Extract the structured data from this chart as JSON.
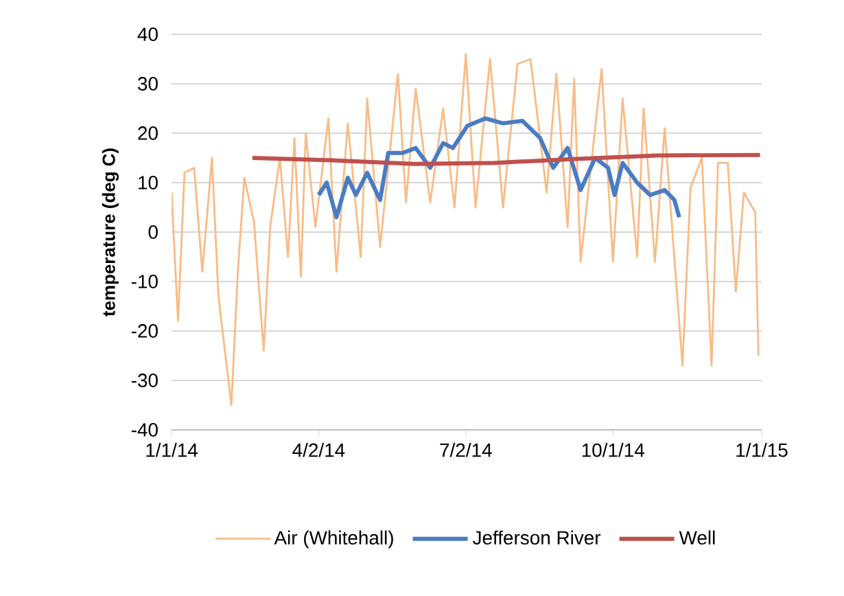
{
  "chart_data": {
    "type": "line",
    "ylabel": "temperature (deg C)",
    "xlim": [
      "2014-01-01",
      "2015-01-01"
    ],
    "xticks": [
      {
        "value": "2014-01-01",
        "label": "1/1/14"
      },
      {
        "value": "2014-04-02",
        "label": "4/2/14"
      },
      {
        "value": "2014-07-02",
        "label": "7/2/14"
      },
      {
        "value": "2014-10-01",
        "label": "10/1/14"
      },
      {
        "value": "2015-01-01",
        "label": "1/1/15"
      }
    ],
    "ylim": [
      -40,
      40
    ],
    "yticks": [
      -40,
      -30,
      -20,
      -10,
      0,
      10,
      20,
      30,
      40
    ],
    "grid": "y",
    "legend": "bottom",
    "marker": "none",
    "line_style": "solid",
    "series": [
      {
        "name": "Air (Whitehall)",
        "color": "#f9bb85",
        "x": [
          "2014-01-01",
          "2014-01-05",
          "2014-01-09",
          "2014-01-15",
          "2014-01-20",
          "2014-01-26",
          "2014-01-30",
          "2014-02-07",
          "2014-02-11",
          "2014-02-15",
          "2014-02-21",
          "2014-02-27",
          "2014-03-03",
          "2014-03-09",
          "2014-03-14",
          "2014-03-18",
          "2014-03-22",
          "2014-03-25",
          "2014-03-31",
          "2014-04-08",
          "2014-04-13",
          "2014-04-20",
          "2014-04-28",
          "2014-05-02",
          "2014-05-10",
          "2014-05-21",
          "2014-05-26",
          "2014-06-01",
          "2014-06-10",
          "2014-06-18",
          "2014-06-25",
          "2014-07-02",
          "2014-07-08",
          "2014-07-17",
          "2014-07-25",
          "2014-08-03",
          "2014-08-11",
          "2014-08-21",
          "2014-08-27",
          "2014-09-03",
          "2014-09-07",
          "2014-09-11",
          "2014-09-24",
          "2014-10-01",
          "2014-10-07",
          "2014-10-16",
          "2014-10-20",
          "2014-10-27",
          "2014-11-02",
          "2014-11-13",
          "2014-11-18",
          "2014-11-25",
          "2014-12-01",
          "2014-12-05",
          "2014-12-11",
          "2014-12-16",
          "2014-12-21",
          "2014-12-28",
          "2014-12-30"
        ],
        "values": [
          8,
          -18,
          12,
          13,
          -8,
          15,
          -13,
          -35,
          -8,
          11,
          2,
          -24,
          1,
          15,
          -5,
          19,
          -9,
          20,
          1,
          23,
          -8,
          22,
          -5,
          27,
          -3,
          32,
          6,
          29,
          6,
          25,
          5,
          36,
          5,
          35,
          5,
          34,
          35,
          8,
          32,
          1,
          31,
          -6,
          33,
          -6,
          27,
          -5,
          25,
          -6,
          21,
          -27,
          9,
          15,
          -27,
          14,
          14,
          -12,
          8,
          4,
          -25
        ]
      },
      {
        "name": "Jefferson River",
        "color": "#4a7cc4",
        "x": [
          "2014-04-02",
          "2014-04-07",
          "2014-04-13",
          "2014-04-20",
          "2014-04-25",
          "2014-05-02",
          "2014-05-10",
          "2014-05-15",
          "2014-05-24",
          "2014-06-01",
          "2014-06-10",
          "2014-06-18",
          "2014-06-24",
          "2014-07-03",
          "2014-07-14",
          "2014-07-25",
          "2014-08-06",
          "2014-08-17",
          "2014-08-25",
          "2014-09-03",
          "2014-09-11",
          "2014-09-20",
          "2014-09-28",
          "2014-10-02",
          "2014-10-07",
          "2014-10-16",
          "2014-10-24",
          "2014-11-02",
          "2014-11-08",
          "2014-11-11"
        ],
        "values": [
          7.5,
          10,
          3,
          11,
          7.5,
          12,
          6.5,
          16,
          16,
          17,
          13,
          18,
          17,
          21.5,
          23,
          22,
          22.5,
          19,
          13,
          17,
          8.5,
          15,
          13,
          7.5,
          14,
          10,
          7.5,
          8.5,
          6.5,
          3
        ]
      },
      {
        "name": "Well",
        "color": "#c0504d",
        "x": [
          "2014-02-20",
          "2014-04-11",
          "2014-05-31",
          "2014-07-20",
          "2014-09-08",
          "2014-10-28",
          "2014-12-31"
        ],
        "values": [
          15,
          14.5,
          13.8,
          14,
          14.8,
          15.5,
          15.6
        ]
      }
    ]
  }
}
